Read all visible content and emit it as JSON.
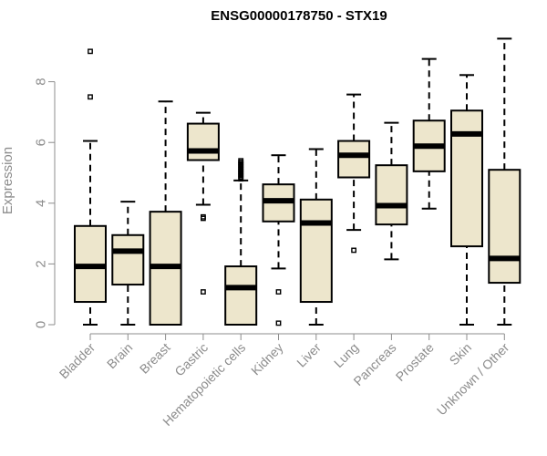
{
  "chart_data": {
    "type": "boxplot",
    "title": "ENSG00000178750 - STX19",
    "ylabel": "Expression",
    "xlabel": "",
    "ylim": [
      0,
      9.4
    ],
    "yticks": [
      0,
      2,
      4,
      6,
      8
    ],
    "box_color": "#ede6cc",
    "categories": [
      "Bladder",
      "Brain",
      "Breast",
      "Gastric",
      "Hematopoietic cells",
      "Kidney",
      "Liver",
      "Lung",
      "Pancreas",
      "Prostate",
      "Skin",
      "Unknown / Other"
    ],
    "boxes": [
      {
        "whislo": 0.0,
        "q1": 0.75,
        "med": 1.92,
        "q3": 3.25,
        "whishi": 6.05,
        "outliers": [
          7.5,
          9.0
        ]
      },
      {
        "whislo": 0.0,
        "q1": 1.32,
        "med": 2.42,
        "q3": 2.95,
        "whishi": 4.05,
        "outliers": []
      },
      {
        "whislo": 0.0,
        "q1": 0.0,
        "med": 1.92,
        "q3": 3.72,
        "whishi": 7.35,
        "outliers": []
      },
      {
        "whislo": 3.95,
        "q1": 5.42,
        "med": 5.72,
        "q3": 6.62,
        "whishi": 6.98,
        "outliers": [
          3.5,
          3.55,
          1.08
        ]
      },
      {
        "whislo": 0.0,
        "q1": 0.0,
        "med": 1.22,
        "q3": 1.92,
        "whishi": 4.75,
        "outliers": [
          4.8,
          4.85,
          4.9,
          4.95,
          5.0,
          5.05,
          5.1,
          5.15,
          5.2,
          5.25,
          5.3,
          5.35,
          5.4
        ]
      },
      {
        "whislo": 1.85,
        "q1": 3.4,
        "med": 4.08,
        "q3": 4.62,
        "whishi": 5.58,
        "outliers": [
          1.08,
          0.05
        ]
      },
      {
        "whislo": 0.0,
        "q1": 0.75,
        "med": 3.35,
        "q3": 4.12,
        "whishi": 5.78,
        "outliers": []
      },
      {
        "whislo": 3.12,
        "q1": 4.85,
        "med": 5.58,
        "q3": 6.05,
        "whishi": 7.58,
        "outliers": [
          2.45
        ]
      },
      {
        "whislo": 2.15,
        "q1": 3.3,
        "med": 3.92,
        "q3": 5.25,
        "whishi": 6.65,
        "outliers": []
      },
      {
        "whislo": 3.82,
        "q1": 5.05,
        "med": 5.88,
        "q3": 6.72,
        "whishi": 8.75,
        "outliers": []
      },
      {
        "whislo": 0.0,
        "q1": 2.58,
        "med": 6.28,
        "q3": 7.05,
        "whishi": 8.22,
        "outliers": []
      },
      {
        "whislo": 0.0,
        "q1": 1.38,
        "med": 2.18,
        "q3": 5.1,
        "whishi": 9.42,
        "outliers": []
      }
    ]
  }
}
